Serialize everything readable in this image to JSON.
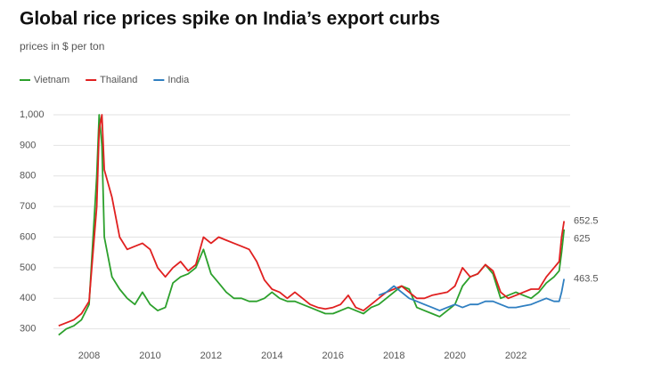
{
  "chart_data": {
    "type": "line",
    "title": "Global rice prices spike on India’s export curbs",
    "subtitle": "prices in $ per ton",
    "x": [
      2007,
      2007.25,
      2007.5,
      2007.75,
      2008,
      2008.25,
      2008.33,
      2008.42,
      2008.5,
      2008.75,
      2009,
      2009.25,
      2009.5,
      2009.75,
      2010,
      2010.25,
      2010.5,
      2010.75,
      2011,
      2011.25,
      2011.5,
      2011.75,
      2012,
      2012.25,
      2012.5,
      2012.75,
      2013,
      2013.25,
      2013.5,
      2013.75,
      2014,
      2014.25,
      2014.5,
      2014.75,
      2015,
      2015.25,
      2015.5,
      2015.75,
      2016,
      2016.25,
      2016.5,
      2016.75,
      2017,
      2017.25,
      2017.5,
      2017.75,
      2018,
      2018.25,
      2018.5,
      2018.75,
      2019,
      2019.25,
      2019.5,
      2019.75,
      2020,
      2020.25,
      2020.5,
      2020.75,
      2021,
      2021.25,
      2021.5,
      2021.75,
      2022,
      2022.25,
      2022.5,
      2022.75,
      2023,
      2023.25,
      2023.42,
      2023.5,
      2023.58
    ],
    "series": [
      {
        "name": "Vietnam",
        "color": "#2ca02c",
        "values": [
          280,
          300,
          310,
          330,
          380,
          800,
          1000,
          900,
          600,
          470,
          430,
          400,
          380,
          420,
          380,
          360,
          370,
          450,
          470,
          480,
          500,
          560,
          480,
          450,
          420,
          400,
          400,
          390,
          390,
          400,
          420,
          400,
          390,
          390,
          380,
          370,
          360,
          350,
          350,
          360,
          370,
          360,
          350,
          370,
          380,
          400,
          420,
          440,
          430,
          370,
          360,
          350,
          340,
          360,
          380,
          440,
          470,
          480,
          510,
          480,
          400,
          410,
          420,
          410,
          400,
          420,
          450,
          470,
          490,
          550,
          625
        ]
      },
      {
        "name": "Thailand",
        "color": "#e02020",
        "values": [
          310,
          320,
          330,
          350,
          390,
          700,
          950,
          1000,
          820,
          730,
          600,
          560,
          570,
          580,
          560,
          500,
          470,
          500,
          520,
          490,
          510,
          600,
          580,
          600,
          590,
          580,
          570,
          560,
          520,
          460,
          430,
          420,
          400,
          420,
          400,
          380,
          370,
          365,
          370,
          380,
          410,
          370,
          360,
          380,
          400,
          420,
          430,
          440,
          420,
          400,
          400,
          410,
          415,
          420,
          440,
          500,
          470,
          480,
          510,
          490,
          420,
          400,
          410,
          420,
          430,
          430,
          470,
          500,
          520,
          600,
          652.5
        ]
      },
      {
        "name": "India",
        "color": "#2f7fc1",
        "values": [
          null,
          null,
          null,
          null,
          null,
          null,
          null,
          null,
          null,
          null,
          null,
          null,
          null,
          null,
          null,
          null,
          null,
          null,
          null,
          null,
          null,
          null,
          null,
          null,
          null,
          null,
          null,
          null,
          null,
          null,
          null,
          null,
          null,
          null,
          null,
          null,
          null,
          null,
          null,
          null,
          null,
          null,
          null,
          null,
          410,
          420,
          440,
          420,
          400,
          390,
          380,
          370,
          360,
          370,
          380,
          370,
          380,
          380,
          390,
          390,
          380,
          370,
          370,
          375,
          380,
          390,
          400,
          390,
          390,
          420,
          463.5
        ]
      }
    ],
    "xlim": [
      2006.83,
      2023.78
    ],
    "xticks": [
      2008,
      2010,
      2012,
      2014,
      2016,
      2018,
      2020,
      2022
    ],
    "ylim": [
      270,
      1000
    ],
    "yticks": [
      300,
      400,
      500,
      600,
      700,
      800,
      900,
      {
        "value": 1000,
        "label": "1,000"
      }
    ],
    "grid": true,
    "legend": "top-left"
  }
}
